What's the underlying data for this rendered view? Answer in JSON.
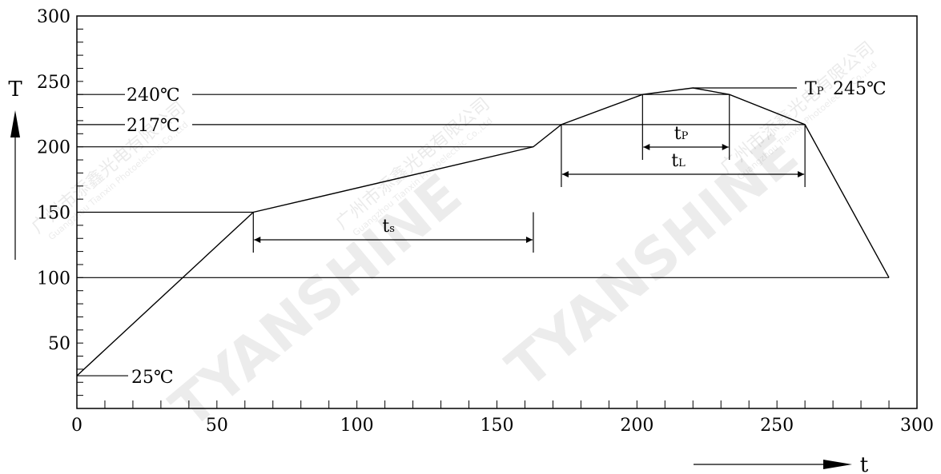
{
  "chart_data": {
    "type": "line",
    "xlabel": "t",
    "ylabel": "T",
    "xlim": [
      0,
      300
    ],
    "ylim": [
      0,
      300
    ],
    "x_ticks": [
      "0",
      "50",
      "100",
      "150",
      "200",
      "250",
      "300"
    ],
    "x_tick_values": [
      0,
      50,
      100,
      150,
      200,
      250,
      300
    ],
    "y_ticks": [
      "50",
      "100",
      "150",
      "200",
      "250",
      "300"
    ],
    "y_tick_values": [
      50,
      100,
      150,
      200,
      250,
      300
    ],
    "x_minor_step": 10,
    "y_minor_step": 10,
    "grid": false,
    "series": [
      {
        "x": [
          0,
          63,
          163,
          173,
          202,
          220,
          233,
          260,
          290
        ],
        "y": [
          25,
          150,
          200,
          217,
          240,
          245,
          240,
          217,
          100
        ]
      }
    ],
    "reference_lines": [
      {
        "value": 150,
        "label": "",
        "x_end": 63
      },
      {
        "value": 200,
        "label": "",
        "x_end": 163
      },
      {
        "value": 217,
        "label": "217℃",
        "x_end": 260
      },
      {
        "value": 240,
        "label": "240℃",
        "x_end": 233
      },
      {
        "value": 100,
        "label": "",
        "x_end": 290
      }
    ],
    "start_label": "25℃",
    "peak_label": {
      "main": "T",
      "sub": "P",
      "value": "245℃"
    },
    "intervals": [
      {
        "main": "t",
        "sub": "s",
        "from": 63,
        "to": 163,
        "level": 150
      },
      {
        "main": "t",
        "sub": "P",
        "from": 202,
        "to": 233,
        "level": 240
      },
      {
        "main": "t",
        "sub": "L",
        "from": 173,
        "to": 260,
        "level": 217
      }
    ],
    "watermark": {
      "brand": "TYANSHINE",
      "company_cn": "广州市添鑫光电有限公司",
      "company_en": "Guangzhou Tianxin Photoelectric Co.,Ltd"
    }
  }
}
